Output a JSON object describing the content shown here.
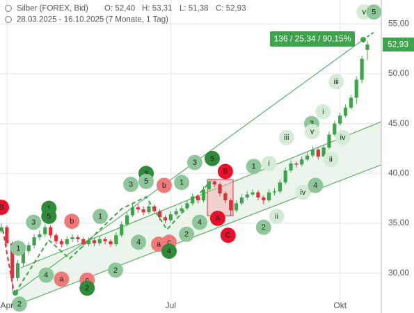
{
  "header": {
    "symbol": "Silber (FOREX, Bid)",
    "open": "O: 52,40",
    "high": "H: 53,31",
    "low": "L: 51,38",
    "close": "C: 52,93",
    "range": "28.03.2025 - 16.10.2025",
    "period": "(7 Monate, 1 Tag)"
  },
  "chart_data": {
    "type": "candlestick",
    "categories": [
      null,
      "Apr",
      null,
      null,
      null,
      null,
      null,
      null,
      null,
      null,
      null,
      null,
      null,
      null,
      null,
      null,
      null,
      null,
      null,
      null,
      null,
      null,
      null,
      null,
      null,
      null,
      null,
      null,
      null,
      null,
      null,
      "Jul",
      null,
      null,
      null,
      null,
      null,
      null,
      null,
      null,
      null,
      null,
      null,
      null,
      null,
      null,
      null,
      null,
      null,
      null,
      null,
      null,
      null,
      null,
      null,
      null,
      null,
      null,
      null,
      null,
      null,
      null,
      "Okt",
      null,
      null,
      null,
      null,
      null
    ],
    "open": [
      34.2,
      34.6,
      33.0,
      29.5,
      31.0,
      32.2,
      32.8,
      33.6,
      33.9,
      34.6,
      33.8,
      33.2,
      32.9,
      33.4,
      33.6,
      33.4,
      32.9,
      33.3,
      33.0,
      33.4,
      33.2,
      32.9,
      33.8,
      34.9,
      35.8,
      36.6,
      36.4,
      36.1,
      36.7,
      36.2,
      35.6,
      35.3,
      35.9,
      36.2,
      36.5,
      37.0,
      37.7,
      37.3,
      38.4,
      39.2,
      38.9,
      38.0,
      37.3,
      36.3,
      37.0,
      37.6,
      37.9,
      38.1,
      37.6,
      37.3,
      38.1,
      38.2,
      39.1,
      40.3,
      41.0,
      40.9,
      41.4,
      41.8,
      42.4,
      41.7,
      42.6,
      43.9,
      45.0,
      45.8,
      46.6,
      47.6,
      49.4,
      52.4
    ],
    "high": [
      35.0,
      34.8,
      33.2,
      31.3,
      32.5,
      33.1,
      33.9,
      34.3,
      34.9,
      34.8,
      34.0,
      33.4,
      33.7,
      33.9,
      33.8,
      33.6,
      33.6,
      33.5,
      33.7,
      33.6,
      33.4,
      34.1,
      35.2,
      36.1,
      36.9,
      36.9,
      36.7,
      37.0,
      36.9,
      36.4,
      35.8,
      36.2,
      36.5,
      36.8,
      37.3,
      38.0,
      37.9,
      38.7,
      39.5,
      39.4,
      39.1,
      38.2,
      37.5,
      37.3,
      37.9,
      38.2,
      38.4,
      38.3,
      37.8,
      38.4,
      38.5,
      39.4,
      40.6,
      41.3,
      41.2,
      41.7,
      42.1,
      42.7,
      42.6,
      42.9,
      44.2,
      45.3,
      46.1,
      46.9,
      47.9,
      49.7,
      51.8,
      53.31
    ],
    "low": [
      34.0,
      32.7,
      28.2,
      29.2,
      30.7,
      31.9,
      32.5,
      33.3,
      33.6,
      33.5,
      32.9,
      32.6,
      32.7,
      33.1,
      33.1,
      32.6,
      32.7,
      32.7,
      32.8,
      32.9,
      32.6,
      32.7,
      33.6,
      34.7,
      35.6,
      36.1,
      35.8,
      35.9,
      35.9,
      35.3,
      35.0,
      35.1,
      35.7,
      36.0,
      36.3,
      36.8,
      37.0,
      37.1,
      38.2,
      38.6,
      37.7,
      37.0,
      35.8,
      36.1,
      36.8,
      37.4,
      37.7,
      37.3,
      36.9,
      37.1,
      37.8,
      38.0,
      38.9,
      40.1,
      40.6,
      40.7,
      41.2,
      41.6,
      41.4,
      41.5,
      42.4,
      43.7,
      44.8,
      45.6,
      46.4,
      47.0,
      49.0,
      51.38
    ],
    "close": [
      34.6,
      33.0,
      29.5,
      31.0,
      32.2,
      32.8,
      33.6,
      33.9,
      34.6,
      33.8,
      33.2,
      32.9,
      33.4,
      33.6,
      33.4,
      32.9,
      33.3,
      33.0,
      33.4,
      33.2,
      32.9,
      33.8,
      34.9,
      35.8,
      36.6,
      36.4,
      36.1,
      36.7,
      36.2,
      35.6,
      35.3,
      35.9,
      36.2,
      36.5,
      37.0,
      37.7,
      37.3,
      38.4,
      39.2,
      38.9,
      38.0,
      37.3,
      36.3,
      37.0,
      37.6,
      37.9,
      38.1,
      37.6,
      37.3,
      38.1,
      38.2,
      39.1,
      40.3,
      41.0,
      40.9,
      41.4,
      41.8,
      42.4,
      41.7,
      42.6,
      43.9,
      45.0,
      45.8,
      46.6,
      47.6,
      49.4,
      51.5,
      52.93
    ],
    "up_color": "#3fa34d",
    "down_color": "#e0303a",
    "ylim": [
      26.0,
      57.4
    ],
    "yticks": [
      {
        "value": 30,
        "label": "30,00"
      },
      {
        "value": 35,
        "label": "35,00"
      },
      {
        "value": 40,
        "label": "40,00"
      },
      {
        "value": 45,
        "label": "45,00"
      },
      {
        "value": 50,
        "label": "50,00"
      },
      {
        "value": 55,
        "label": "55,00"
      }
    ],
    "grid": true,
    "last_label": "52,93",
    "annotation": "136 / 25,34 / 90,15%",
    "wave_labels": [
      {
        "label": "B",
        "x": 0,
        "y": 36.6,
        "color": "#e8102a"
      },
      {
        "label": "1",
        "x": 3.1,
        "y": 32.5,
        "color": "#8fc79a"
      },
      {
        "label": "3",
        "x": 5.9,
        "y": 35.1,
        "color": "#8fc79a"
      },
      {
        "label": "1",
        "x": 8.7,
        "y": 36.5,
        "color": "#2e8b3a"
      },
      {
        "label": "5",
        "x": 8.7,
        "y": 35.7,
        "color": "#2e8b3a"
      },
      {
        "label": "b",
        "x": 12.9,
        "y": 35.2,
        "color": "#f07a7a"
      },
      {
        "label": "1",
        "x": 18.1,
        "y": 35.7,
        "color": "#8fc79a"
      },
      {
        "label": "4",
        "x": 8.2,
        "y": 29.8,
        "color": "#8fc79a"
      },
      {
        "label": "a",
        "x": 11.0,
        "y": 29.4,
        "color": "#f07a7a"
      },
      {
        "label": "c",
        "x": 15.7,
        "y": 29.3,
        "color": "#f07a7a"
      },
      {
        "label": "2",
        "x": 15.7,
        "y": 28.5,
        "color": "#2e8b3a"
      },
      {
        "label": "2",
        "x": 3.3,
        "y": 26.9,
        "color": "#8fc79a"
      },
      {
        "label": "2",
        "x": 20.9,
        "y": 30.3,
        "color": "#8fc79a"
      },
      {
        "label": "3",
        "x": 23.7,
        "y": 38.9,
        "color": "#8fc79a"
      },
      {
        "label": "3",
        "x": 26.5,
        "y": 40.0,
        "color": "#2e8b3a"
      },
      {
        "label": "5",
        "x": 26.5,
        "y": 39.2,
        "color": "#8fc79a"
      },
      {
        "label": "b",
        "x": 29.8,
        "y": 38.8,
        "color": "#f07a7a"
      },
      {
        "label": "1",
        "x": 33.0,
        "y": 39.1,
        "color": "#8fc79a"
      },
      {
        "label": "3",
        "x": 35.4,
        "y": 41.1,
        "color": "#8fc79a"
      },
      {
        "label": "5",
        "x": 38.6,
        "y": 41.5,
        "color": "#2e8b3a"
      },
      {
        "label": "B",
        "x": 41.0,
        "y": 40.2,
        "color": "#e8102a"
      },
      {
        "label": "4",
        "x": 25.1,
        "y": 33.1,
        "color": "#8fc79a"
      },
      {
        "label": "a",
        "x": 28.8,
        "y": 32.9,
        "color": "#f07a7a"
      },
      {
        "label": "c",
        "x": 30.7,
        "y": 33.1,
        "color": "#f07a7a"
      },
      {
        "label": "4",
        "x": 30.7,
        "y": 32.2,
        "color": "#2e8b3a"
      },
      {
        "label": "2",
        "x": 33.9,
        "y": 33.9,
        "color": "#8fc79a"
      },
      {
        "label": "4",
        "x": 36.3,
        "y": 35.1,
        "color": "#8fc79a"
      },
      {
        "label": "A",
        "x": 39.6,
        "y": 35.5,
        "color": "#e8102a"
      },
      {
        "label": "C",
        "x": 41.5,
        "y": 33.8,
        "color": "#e8102a"
      },
      {
        "label": "1",
        "x": 46.2,
        "y": 40.7,
        "color": "#8fc79a"
      },
      {
        "label": "i",
        "x": 49.0,
        "y": 41.0,
        "color": "#d4ecd6"
      },
      {
        "label": "2",
        "x": 48.0,
        "y": 34.6,
        "color": "#8fc79a"
      },
      {
        "label": "ii",
        "x": 50.4,
        "y": 35.7,
        "color": "#d4ecd6"
      },
      {
        "label": "iii",
        "x": 52.2,
        "y": 43.6,
        "color": "#d4ecd6"
      },
      {
        "label": "iv",
        "x": 55.2,
        "y": 38.1,
        "color": "#d4ecd6"
      },
      {
        "label": "4",
        "x": 57.5,
        "y": 38.8,
        "color": "#8fc79a"
      },
      {
        "label": "3",
        "x": 56.8,
        "y": 45.0,
        "color": "#8fc79a"
      },
      {
        "label": "v",
        "x": 56.9,
        "y": 44.2,
        "color": "#d4ecd6"
      },
      {
        "label": "i",
        "x": 58.9,
        "y": 46.2,
        "color": "#d4ecd6"
      },
      {
        "label": "ii",
        "x": 60.3,
        "y": 41.4,
        "color": "#d4ecd6"
      },
      {
        "label": "iii",
        "x": 61.3,
        "y": 49.2,
        "color": "#d4ecd6"
      },
      {
        "label": "iv",
        "x": 62.5,
        "y": 43.6,
        "color": "#d4ecd6"
      },
      {
        "label": "v",
        "x": 66.4,
        "y": 56.2,
        "color": "#d4ecd6"
      },
      {
        "label": "5",
        "x": 68.2,
        "y": 56.2,
        "color": "#8fc79a"
      }
    ]
  }
}
